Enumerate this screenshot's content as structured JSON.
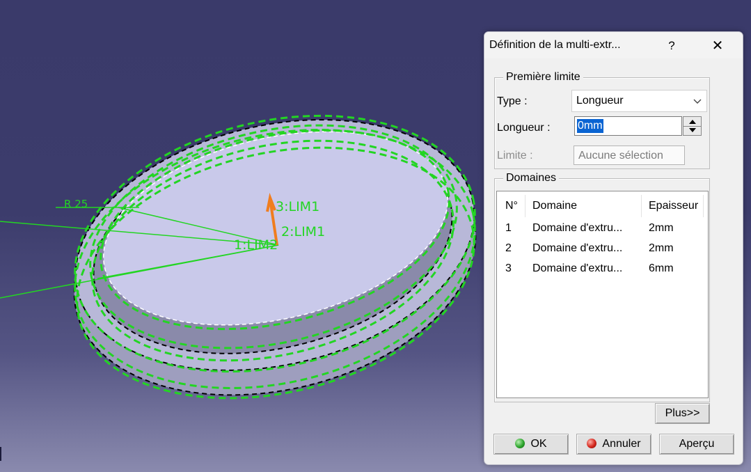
{
  "viewport": {
    "labels": {
      "radius": "R 25",
      "lim_top": "3:LIM1",
      "lim_mid": "2:LIM1",
      "lim_left": "1:LIM2"
    },
    "colors": {
      "outline": "#23d523",
      "arrow": "#f07d1e",
      "surface": "#c9c9ea"
    }
  },
  "dialog": {
    "title": "Définition de la multi-extr...",
    "help_label": "?",
    "close_label": "✕",
    "first_limit": {
      "group_title": "Première limite",
      "type_label": "Type :",
      "type_value": "Longueur",
      "length_label": "Longueur :",
      "length_value": "0mm",
      "limit_label": "Limite :",
      "limit_value": "Aucune sélection"
    },
    "domains": {
      "group_title": "Domaines",
      "columns": [
        "N°",
        "Domaine",
        "Epaisseur"
      ],
      "rows": [
        {
          "n": "1",
          "domain": "Domaine d'extru...",
          "thickness": "2mm"
        },
        {
          "n": "2",
          "domain": "Domaine d'extru...",
          "thickness": "2mm"
        },
        {
          "n": "3",
          "domain": "Domaine d'extru...",
          "thickness": "6mm"
        }
      ],
      "more_button": "Plus>>"
    },
    "buttons": {
      "ok": "OK",
      "cancel": "Annuler",
      "preview": "Aperçu"
    }
  }
}
